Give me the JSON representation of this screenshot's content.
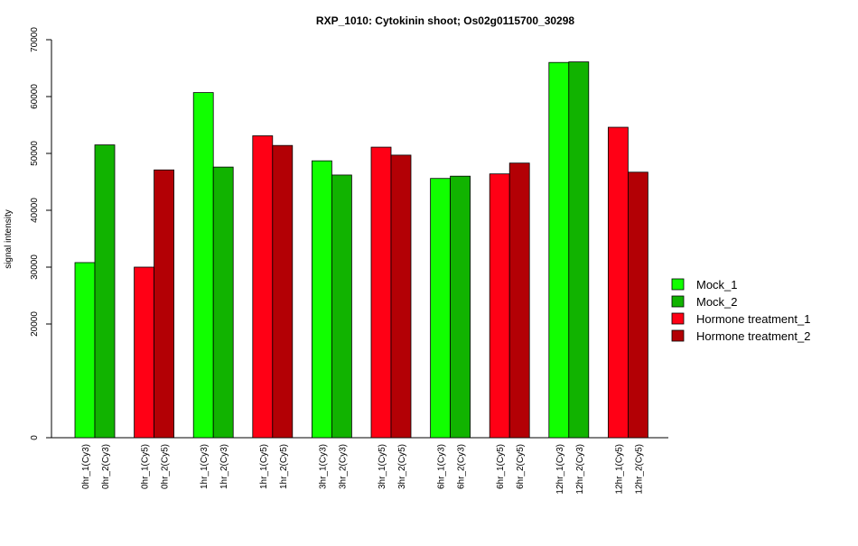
{
  "chart_data": {
    "type": "bar",
    "title": "RXP_1010: Cytokinin shoot; Os02g0115700_30298",
    "xlabel": "",
    "ylabel": "signal intensity",
    "ylim": [
      0,
      70000
    ],
    "y_ticks": [
      0,
      20000,
      30000,
      40000,
      50000,
      60000,
      70000
    ],
    "grid": false,
    "legend_position": "right",
    "series": [
      {
        "name": "Mock_1",
        "color": "#11ff00"
      },
      {
        "name": "Mock_2",
        "color": "#11b300"
      },
      {
        "name": "Hormone treatment_1",
        "color": "#ff0015"
      },
      {
        "name": "Hormone treatment_2",
        "color": "#b30005"
      }
    ],
    "groups": [
      {
        "bars": [
          {
            "label": "0hr_1(Cy3)",
            "value": 30800,
            "series": 0
          },
          {
            "label": "0hr_2(Cy3)",
            "value": 51500,
            "series": 1
          }
        ]
      },
      {
        "bars": [
          {
            "label": "0hr_1(Cy5)",
            "value": 30000,
            "series": 2
          },
          {
            "label": "0hr_2(Cy5)",
            "value": 47100,
            "series": 3
          }
        ]
      },
      {
        "bars": [
          {
            "label": "1hr_1(Cy3)",
            "value": 60700,
            "series": 0
          },
          {
            "label": "1hr_2(Cy3)",
            "value": 47600,
            "series": 1
          }
        ]
      },
      {
        "bars": [
          {
            "label": "1hr_1(Cy5)",
            "value": 53100,
            "series": 2
          },
          {
            "label": "1hr_2(Cy5)",
            "value": 51400,
            "series": 3
          }
        ]
      },
      {
        "bars": [
          {
            "label": "3hr_1(Cy3)",
            "value": 48700,
            "series": 0
          },
          {
            "label": "3hr_2(Cy3)",
            "value": 46200,
            "series": 1
          }
        ]
      },
      {
        "bars": [
          {
            "label": "3hr_1(Cy5)",
            "value": 51100,
            "series": 2
          },
          {
            "label": "3hr_2(Cy5)",
            "value": 49700,
            "series": 3
          }
        ]
      },
      {
        "bars": [
          {
            "label": "6hr_1(Cy3)",
            "value": 45600,
            "series": 0
          },
          {
            "label": "6hr_2(Cy3)",
            "value": 46000,
            "series": 1
          }
        ]
      },
      {
        "bars": [
          {
            "label": "6hr_1(Cy5)",
            "value": 46400,
            "series": 2
          },
          {
            "label": "6hr_2(Cy5)",
            "value": 48300,
            "series": 3
          }
        ]
      },
      {
        "bars": [
          {
            "label": "12hr_1(Cy3)",
            "value": 66000,
            "series": 0
          },
          {
            "label": "12hr_2(Cy3)",
            "value": 66100,
            "series": 1
          }
        ]
      },
      {
        "bars": [
          {
            "label": "12hr_1(Cy5)",
            "value": 54600,
            "series": 2
          },
          {
            "label": "12hr_2(Cy5)",
            "value": 46700,
            "series": 3
          }
        ]
      }
    ]
  }
}
